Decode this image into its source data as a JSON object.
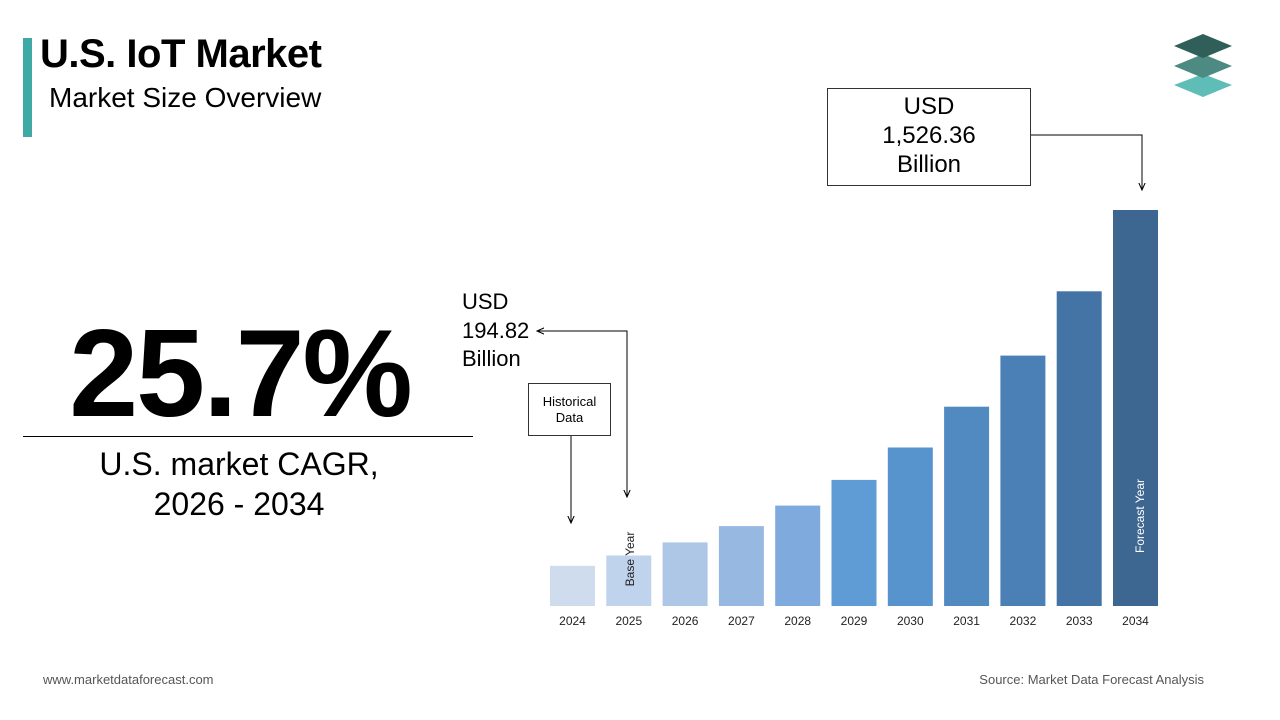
{
  "header": {
    "title": "U.S. IoT Market",
    "subtitle": "Market Size Overview",
    "accent_color": "#3fa9a5"
  },
  "logo": {
    "icon": "stacked-layers-logo-icon",
    "colors": [
      "#2f5f58",
      "#4d8b82",
      "#5fbdb8"
    ]
  },
  "cagr": {
    "value": "25.7%",
    "label_line1": "U.S. market CAGR,",
    "label_line2": "2026 - 2034"
  },
  "annotations": {
    "historical_line1": "Historical",
    "historical_line2": "Data",
    "base_value_line1": "USD",
    "base_value_line2": "194.82",
    "base_value_line3": "Billion",
    "forecast_value_line1": "USD",
    "forecast_value_line2": "1,526.36",
    "forecast_value_line3": "Billion",
    "base_year_label": "Base Year",
    "forecast_year_label": "Forecast Year"
  },
  "chart_data": {
    "type": "bar",
    "categories": [
      "2024",
      "2025",
      "2026",
      "2027",
      "2028",
      "2029",
      "2030",
      "2031",
      "2032",
      "2033",
      "2034"
    ],
    "values": [
      155,
      194.82,
      245,
      308,
      387,
      486,
      611,
      768,
      965,
      1213,
      1526.36
    ],
    "ylim": [
      0,
      1526.36
    ],
    "colors": [
      "#cfdcee",
      "#c0d3ec",
      "#aec7e6",
      "#97b9e1",
      "#7eaadd",
      "#5f9cd6",
      "#5793cc",
      "#508ac1",
      "#4a80b5",
      "#4473a5",
      "#3d6690"
    ],
    "grid": false,
    "legend": "none"
  },
  "footer": {
    "website": "www.marketdataforecast.com",
    "source": "Source: Market Data Forecast Analysis"
  }
}
